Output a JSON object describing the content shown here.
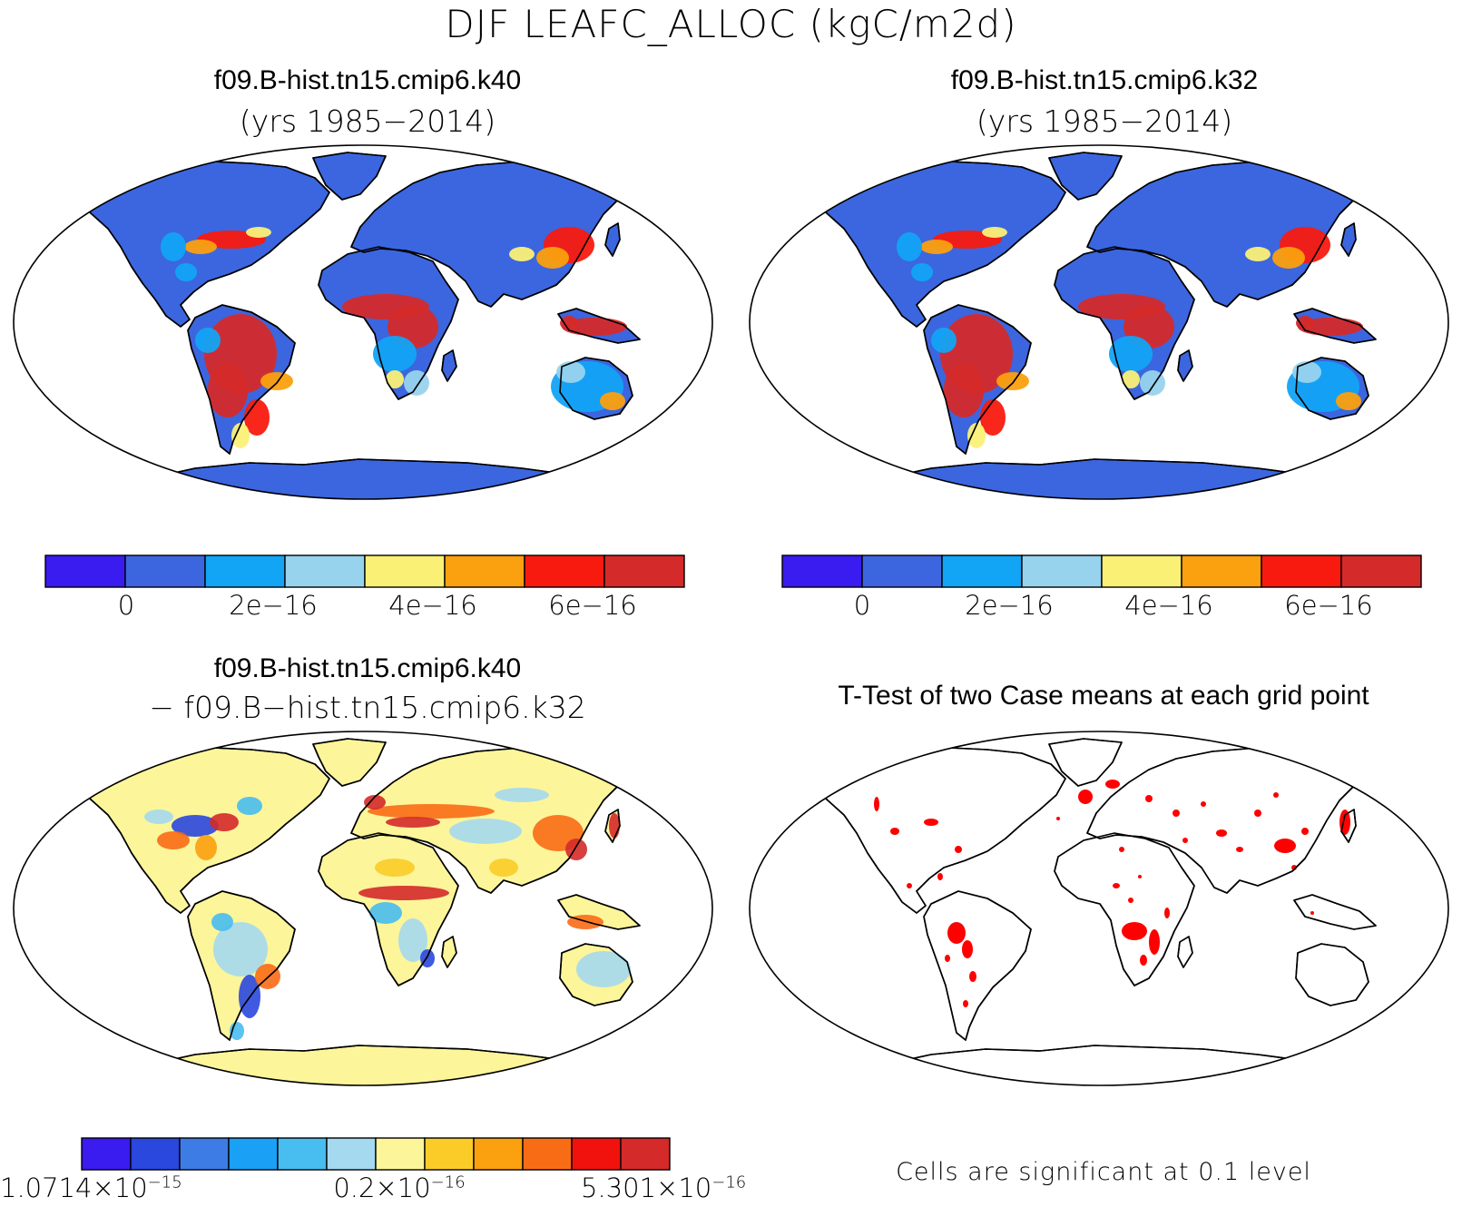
{
  "title": "DJF LEAFC_ALLOC (kgC/m2d)",
  "panels": [
    {
      "id": "k40",
      "title": "f09.B-hist.tn15.cmip6.k40",
      "subtitle": "(yrs 1985−2014)",
      "colorbar": {
        "colors": [
          "#3a1bf0",
          "#3b66df",
          "#12a4f5",
          "#98d3ee",
          "#fbf076",
          "#fba00e",
          "#f81a0f",
          "#d42a2a"
        ],
        "labels": [
          "0",
          "2e−16",
          "4e−16",
          "6e−16"
        ]
      }
    },
    {
      "id": "k32",
      "title": "f09.B-hist.tn15.cmip6.k32",
      "subtitle": "(yrs 1985−2014)",
      "colorbar": {
        "colors": [
          "#3a1bf0",
          "#3b66df",
          "#12a4f5",
          "#98d3ee",
          "#fbf076",
          "#fba00e",
          "#f81a0f",
          "#d42a2a"
        ],
        "labels": [
          "0",
          "2e−16",
          "4e−16",
          "6e−16"
        ]
      }
    },
    {
      "id": "diff",
      "title": "f09.B-hist.tn15.cmip6.k40",
      "subtitle": "− f09.B−hist.tn15.cmip6.k32",
      "colorbar": {
        "colors": [
          "#3a1bf0",
          "#2a47de",
          "#3d7ce4",
          "#1aa0f5",
          "#48bdf0",
          "#a4d9ef",
          "#fcf59a",
          "#fbcc28",
          "#fba00e",
          "#f96c16",
          "#f2120d",
          "#d42a2a"
        ],
        "labels": [
          {
            "mant": "1.0714×10",
            "exp": "−15"
          },
          {
            "mant": "0.2×10",
            "exp": "−16"
          },
          {
            "mant": "5.301×10",
            "exp": "−16"
          }
        ]
      }
    },
    {
      "id": "ttest",
      "title": "T-Test of two Case means at each grid point",
      "note": "Cells are significant at 0.1 level"
    }
  ]
}
